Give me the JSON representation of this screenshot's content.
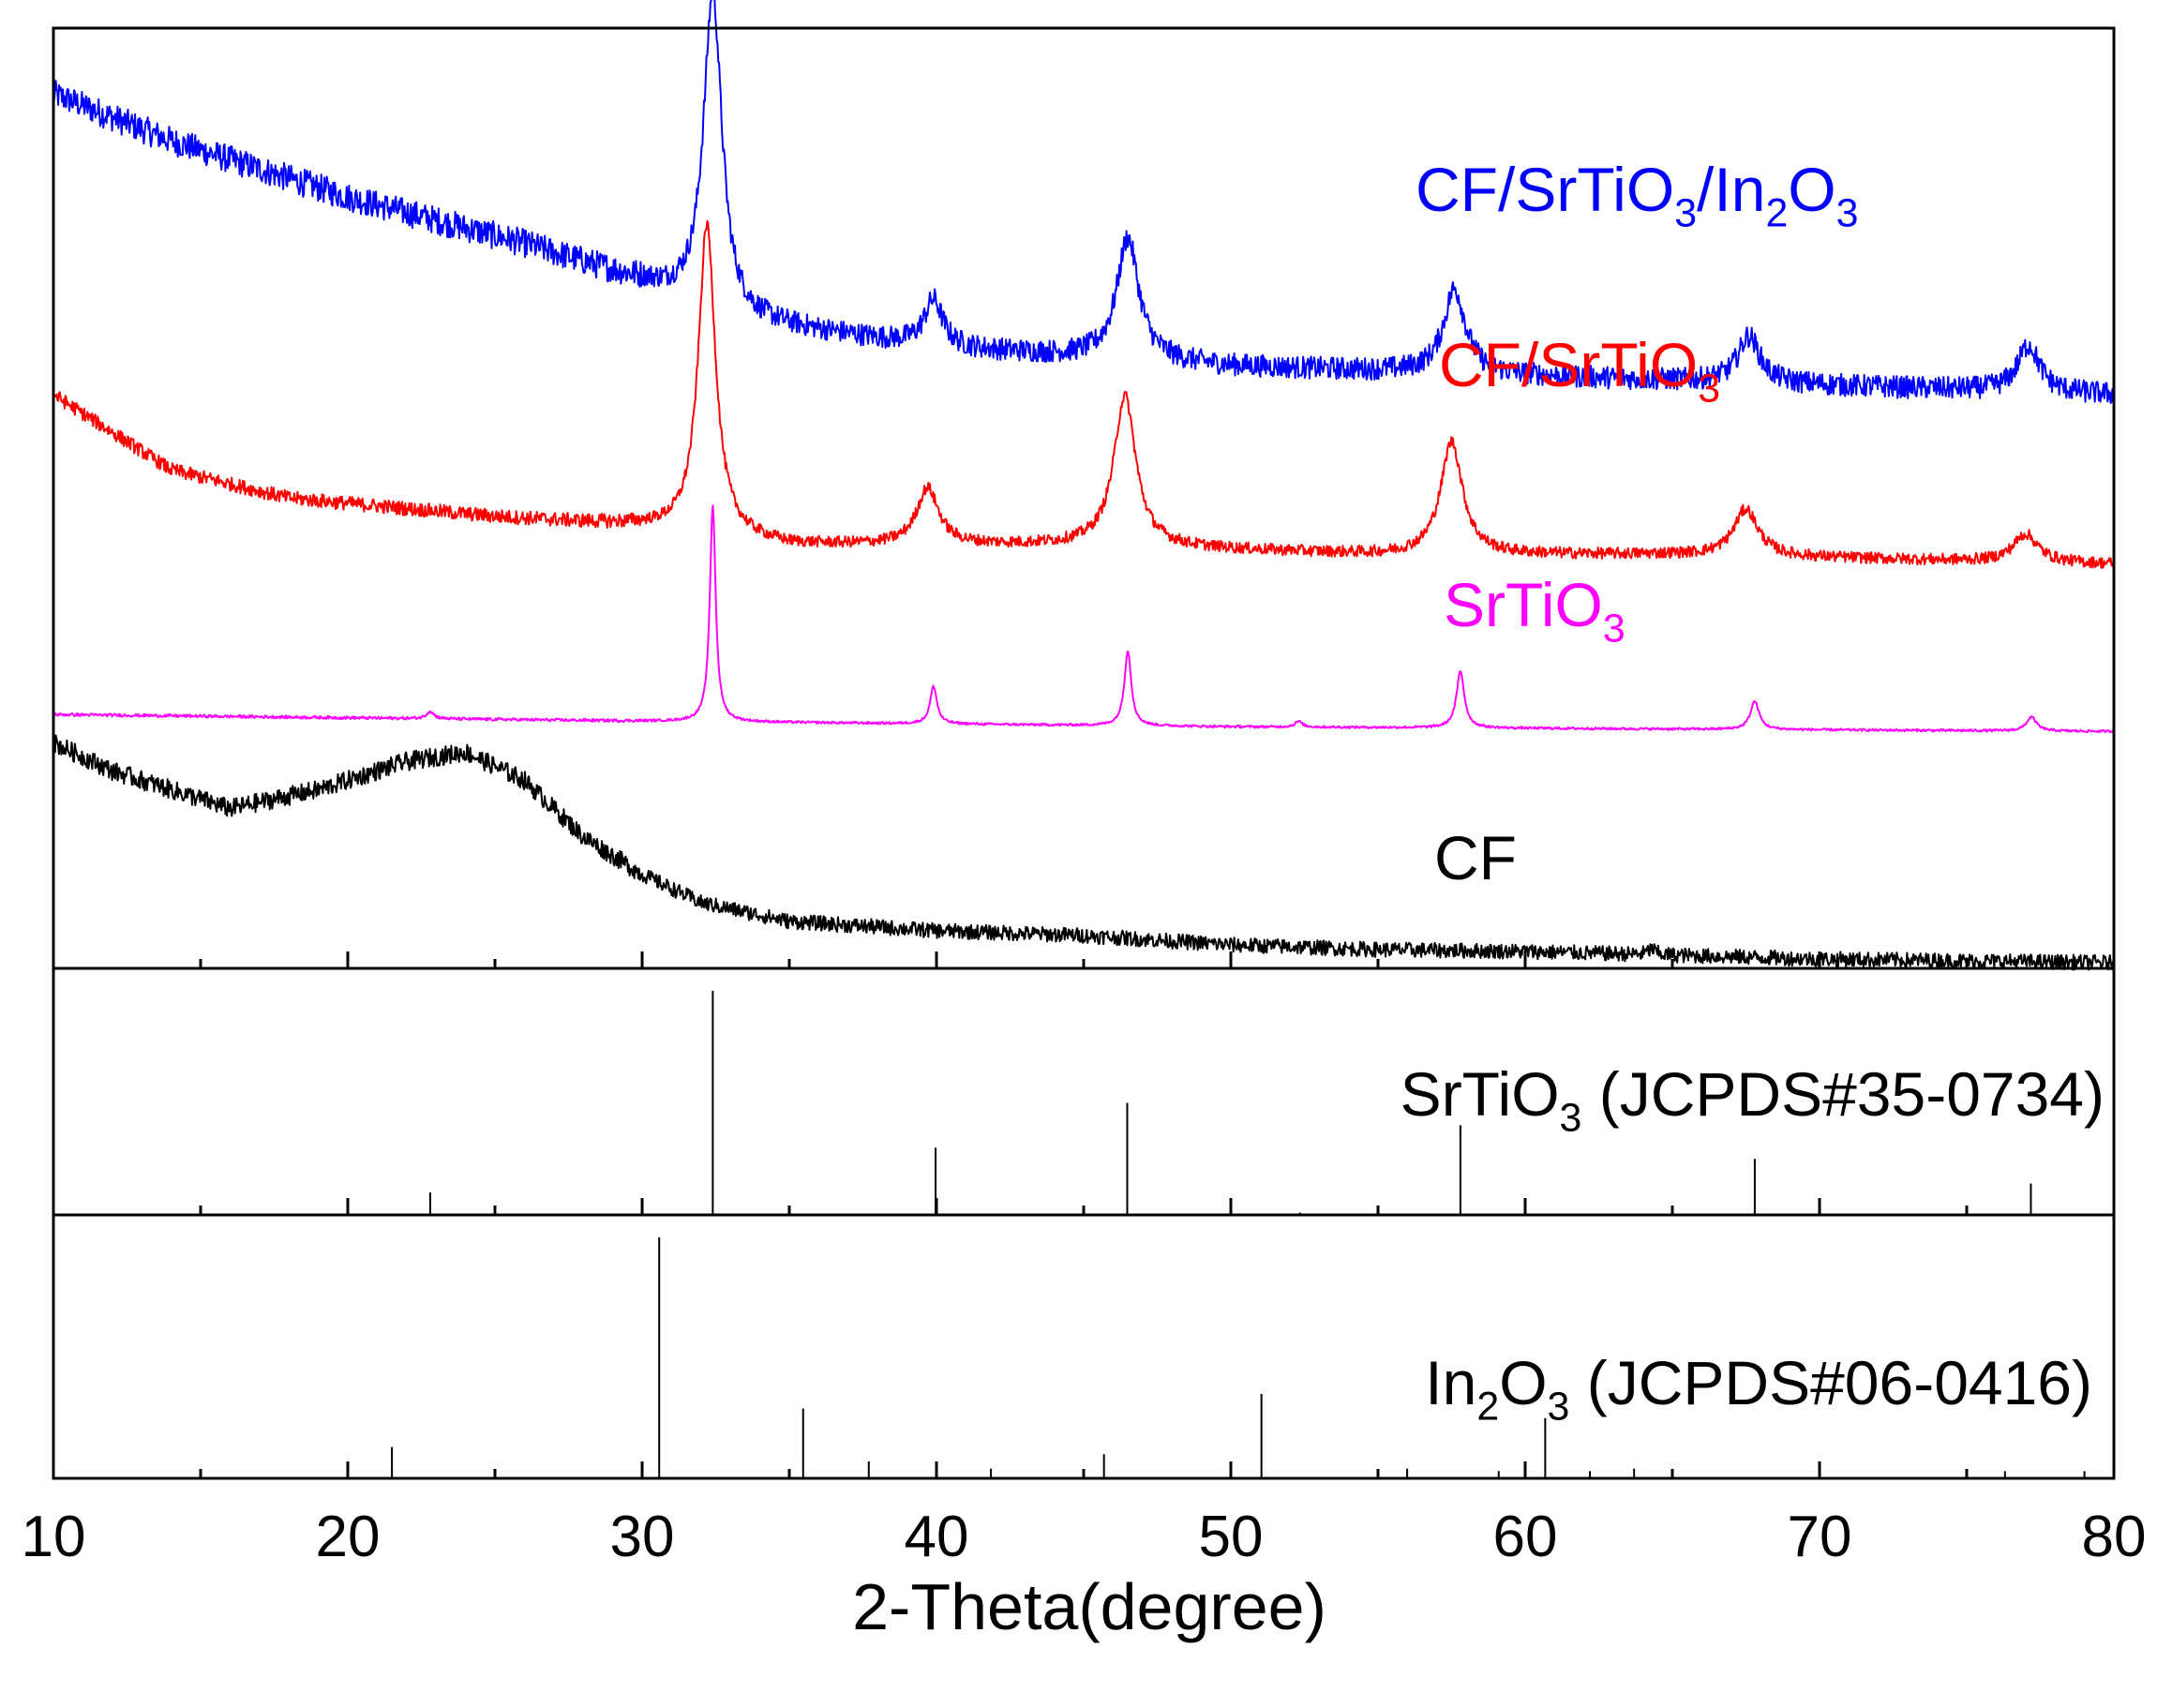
{
  "chart_data": {
    "type": "line",
    "title": "",
    "xlabel": "2-Theta(degree)",
    "ylabel": "",
    "xlim": [
      10,
      80
    ],
    "xticks": [
      10,
      20,
      30,
      40,
      50,
      60,
      70,
      80
    ],
    "xtick_labels": [
      "10",
      "20",
      "30",
      "40",
      "50",
      "60",
      "70",
      "80"
    ],
    "grid": false,
    "legend": "inline labels right of each curve",
    "series": [
      {
        "name": "CF/SrTiO3/In2O3",
        "color": "#0000ff",
        "label_parts": [
          {
            "t": "CF/SrTiO",
            "sub": false
          },
          {
            "t": "3",
            "sub": true
          },
          {
            "t": "/In",
            "sub": false
          },
          {
            "t": "2",
            "sub": true
          },
          {
            "t": "O",
            "sub": false
          },
          {
            "t": "3",
            "sub": true
          }
        ],
        "baseline": [
          [
            10,
            0.93
          ],
          [
            14,
            0.88
          ],
          [
            20,
            0.82
          ],
          [
            26,
            0.77
          ],
          [
            30,
            0.73
          ],
          [
            33,
            0.69
          ],
          [
            40,
            0.66
          ],
          [
            50,
            0.64
          ],
          [
            60,
            0.63
          ],
          [
            70,
            0.62
          ],
          [
            80,
            0.61
          ]
        ],
        "peaks": [
          [
            32.4,
            0.34,
            0.38
          ],
          [
            39.9,
            0.05,
            0.38
          ],
          [
            46.5,
            0.13,
            0.45
          ],
          [
            57.6,
            0.09,
            0.45
          ],
          [
            67.6,
            0.05,
            0.45
          ],
          [
            77.1,
            0.05,
            0.45
          ]
        ],
        "noise": 0.012
      },
      {
        "name": "CF/SrTiO3",
        "color": "#ff0000",
        "label_parts": [
          {
            "t": "CF/SrTiO",
            "sub": false
          },
          {
            "t": "3",
            "sub": true
          }
        ],
        "baseline": [
          [
            10,
            0.61
          ],
          [
            14,
            0.53
          ],
          [
            18,
            0.5
          ],
          [
            25,
            0.48
          ],
          [
            30,
            0.47
          ],
          [
            35,
            0.45
          ],
          [
            45,
            0.45
          ],
          [
            55,
            0.44
          ],
          [
            65,
            0.44
          ],
          [
            80,
            0.43
          ]
        ],
        "peaks": [
          [
            32.2,
            0.33,
            0.35
          ],
          [
            39.7,
            0.06,
            0.45
          ],
          [
            46.4,
            0.16,
            0.45
          ],
          [
            57.5,
            0.12,
            0.45
          ],
          [
            67.5,
            0.05,
            0.5
          ],
          [
            77.0,
            0.03,
            0.5
          ]
        ],
        "noise": 0.006
      },
      {
        "name": "SrTiO3",
        "color": "#ff00ff",
        "label_parts": [
          {
            "t": "SrTiO",
            "sub": false
          },
          {
            "t": "3",
            "sub": true
          }
        ],
        "baseline": [
          [
            10,
            0.27
          ],
          [
            30,
            0.263
          ],
          [
            50,
            0.257
          ],
          [
            80,
            0.252
          ]
        ],
        "peaks": [
          [
            22.8,
            0.008,
            0.15
          ],
          [
            32.4,
            0.23,
            0.12
          ],
          [
            39.9,
            0.04,
            0.14
          ],
          [
            46.5,
            0.08,
            0.14
          ],
          [
            52.3,
            0.006,
            0.15
          ],
          [
            57.8,
            0.06,
            0.16
          ],
          [
            67.8,
            0.03,
            0.18
          ],
          [
            77.2,
            0.015,
            0.2
          ]
        ],
        "noise": 0.0012
      },
      {
        "name": "CF",
        "color": "#000000",
        "label_parts": [
          {
            "t": "CF",
            "sub": false
          }
        ],
        "baseline": [
          [
            10,
            0.24
          ],
          [
            12,
            0.21
          ],
          [
            14,
            0.19
          ],
          [
            16,
            0.17
          ],
          [
            19,
            0.19
          ],
          [
            22,
            0.22
          ],
          [
            24,
            0.23
          ],
          [
            26,
            0.2
          ],
          [
            28,
            0.14
          ],
          [
            30,
            0.1
          ],
          [
            32,
            0.07
          ],
          [
            35,
            0.05
          ],
          [
            40,
            0.04
          ],
          [
            45,
            0.035
          ],
          [
            50,
            0.025
          ],
          [
            55,
            0.02
          ],
          [
            60,
            0.018
          ],
          [
            65,
            0.014
          ],
          [
            70,
            0.01
          ],
          [
            75,
            0.008
          ],
          [
            80,
            0.006
          ]
        ],
        "peaks": [
          [
            64.3,
            0.006,
            0.15
          ]
        ],
        "noise": 0.008
      }
    ],
    "reference_panels": [
      {
        "name": "SrTiO3 (JCPDS#35-0734)",
        "label_parts": [
          {
            "t": "SrTiO",
            "sub": false
          },
          {
            "t": "3",
            "sub": true
          },
          {
            "t": " (JCPDS#35-0734)",
            "sub": false
          }
        ],
        "sticks": [
          [
            22.8,
            0.1
          ],
          [
            32.4,
            1.0
          ],
          [
            39.97,
            0.3
          ],
          [
            46.48,
            0.5
          ],
          [
            52.35,
            0.01
          ],
          [
            57.8,
            0.4
          ],
          [
            67.8,
            0.25
          ],
          [
            77.18,
            0.14
          ]
        ]
      },
      {
        "name": "In2O3 (JCPDS#06-0416)",
        "label_parts": [
          {
            "t": "In",
            "sub": false
          },
          {
            "t": "2",
            "sub": true
          },
          {
            "t": "O",
            "sub": false
          },
          {
            "t": "3",
            "sub": true
          },
          {
            "t": " (JCPDS#06-0416)",
            "sub": false
          }
        ],
        "sticks": [
          [
            21.5,
            0.13
          ],
          [
            30.58,
            1.0
          ],
          [
            35.47,
            0.29
          ],
          [
            37.7,
            0.07
          ],
          [
            41.85,
            0.04
          ],
          [
            45.69,
            0.1
          ],
          [
            51.04,
            0.35
          ],
          [
            55.99,
            0.04
          ],
          [
            59.1,
            0.03
          ],
          [
            60.68,
            0.25
          ],
          [
            62.2,
            0.03
          ],
          [
            63.7,
            0.04
          ],
          [
            75.0,
            0.03
          ],
          [
            76.3,
            0.03
          ],
          [
            79.0,
            0.03
          ]
        ]
      }
    ]
  }
}
